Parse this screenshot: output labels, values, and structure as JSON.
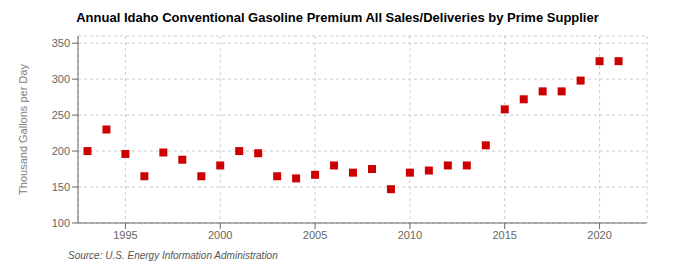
{
  "chart_data": {
    "type": "scatter",
    "title": "Annual Idaho Conventional Gasoline Premium All Sales/Deliveries by Prime Supplier",
    "ylabel": "Thousand Gallons per Day",
    "annotation": "Source: U.S. Energy Information Administration",
    "x": [
      1993,
      1994,
      1995,
      1996,
      1997,
      1998,
      1999,
      2000,
      2001,
      2002,
      2003,
      2004,
      2005,
      2006,
      2007,
      2008,
      2009,
      2010,
      2011,
      2012,
      2013,
      2014,
      2015,
      2016,
      2017,
      2018,
      2019,
      2020,
      2021
    ],
    "values": [
      200,
      230,
      196,
      165,
      198,
      188,
      165,
      180,
      200,
      197,
      165,
      162,
      167,
      180,
      170,
      175,
      147,
      170,
      173,
      180,
      180,
      208,
      258,
      272,
      283,
      283,
      298,
      325,
      325
    ],
    "color": "#cc0000",
    "marker": "square",
    "xlim": [
      1992.5,
      2022.5
    ],
    "xticks": [
      1995,
      2000,
      2005,
      2010,
      2015,
      2020
    ],
    "ylim": [
      100,
      360
    ],
    "yticks": [
      100,
      150,
      200,
      250,
      300,
      350
    ],
    "grid": true
  }
}
